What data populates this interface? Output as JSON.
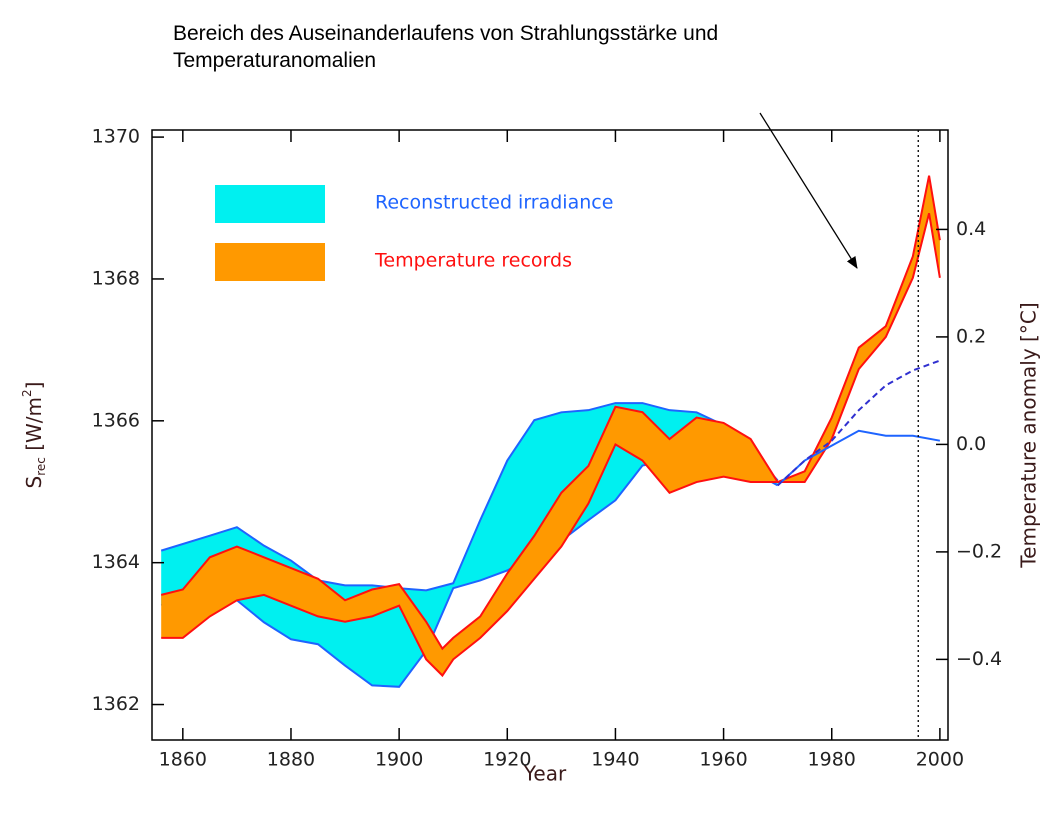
{
  "chart_data": {
    "type": "band",
    "annotation": [
      "Bereich des Auseinanderlaufens von Strahlungsstärke und",
      "Temperaturanomalien"
    ],
    "xlabel": "Year",
    "ylabel": [
      "S",
      "rec",
      " [W/m",
      "2",
      "]"
    ],
    "y2label": "Temperature anomaly [°C]",
    "xlim": [
      1854.3,
      2001.5
    ],
    "xticks": [
      1860,
      1880,
      1900,
      1920,
      1940,
      1960,
      1980,
      2000
    ],
    "ylim": [
      1361.5,
      1370.1
    ],
    "yticks": [
      1362,
      1364,
      1366,
      1368,
      1370
    ],
    "y2lim": [
      -0.55,
      0.585
    ],
    "y2ticks": [
      {
        "value": -0.4,
        "label": "−0.4"
      },
      {
        "value": -0.2,
        "label": "−0.2"
      },
      {
        "value": 0,
        "label": "0.0"
      },
      0.2,
      0.4
    ],
    "legend": "upper left",
    "reference_lines": [
      1996
    ],
    "series": [
      {
        "type": "band",
        "name": "Reconstructed irradiance",
        "color": "#00f0f0",
        "edge_color": "#1e64ff",
        "axis": "y",
        "x": [
          1856,
          1865,
          1870,
          1875,
          1880,
          1885,
          1890,
          1895,
          1900,
          1905,
          1910,
          1915,
          1920,
          1925,
          1930,
          1935,
          1940,
          1945,
          1950,
          1955,
          1960,
          1965,
          1970
        ],
        "upper": [
          1364.17,
          1364.38,
          1364.5,
          1364.24,
          1364.03,
          1363.75,
          1363.68,
          1363.68,
          1363.64,
          1363.61,
          1363.71,
          1364.6,
          1365.44,
          1366.01,
          1366.12,
          1366.15,
          1366.25,
          1366.25,
          1366.15,
          1366.12,
          1365.94,
          1365.58,
          1365.16
        ],
        "lower": [
          1363.4,
          1363.61,
          1363.47,
          1363.16,
          1362.92,
          1362.85,
          1362.55,
          1362.27,
          1362.25,
          1362.76,
          1363.64,
          1363.75,
          1363.89,
          1364.1,
          1364.31,
          1364.6,
          1364.88,
          1365.37,
          1365.44,
          1365.51,
          1365.44,
          1365.3,
          1365.09
        ]
      },
      {
        "type": "band",
        "name": "Temperature records",
        "color": "#ff9900",
        "edge_color": "#ff1010",
        "axis": "y2",
        "x": [
          1856,
          1860,
          1865,
          1870,
          1875,
          1880,
          1885,
          1890,
          1895,
          1900,
          1905,
          1908,
          1910,
          1915,
          1920,
          1925,
          1930,
          1935,
          1940,
          1945,
          1950,
          1955,
          1960,
          1965,
          1970,
          1975,
          1980,
          1985,
          1990,
          1995,
          1998,
          2000
        ],
        "upper": [
          -0.28,
          -0.27,
          -0.21,
          -0.19,
          -0.21,
          -0.23,
          -0.25,
          -0.29,
          -0.27,
          -0.26,
          -0.33,
          -0.38,
          -0.36,
          -0.32,
          -0.24,
          -0.17,
          -0.09,
          -0.04,
          0.07,
          0.06,
          0.01,
          0.05,
          0.04,
          0.01,
          -0.07,
          -0.05,
          0.05,
          0.18,
          0.22,
          0.35,
          0.5,
          0.38
        ],
        "lower": [
          -0.36,
          -0.36,
          -0.32,
          -0.29,
          -0.28,
          -0.3,
          -0.32,
          -0.33,
          -0.32,
          -0.3,
          -0.4,
          -0.43,
          -0.4,
          -0.36,
          -0.31,
          -0.25,
          -0.19,
          -0.11,
          0,
          -0.03,
          -0.09,
          -0.07,
          -0.06,
          -0.07,
          -0.07,
          -0.07,
          0.01,
          0.14,
          0.2,
          0.31,
          0.43,
          0.31
        ]
      },
      {
        "type": "line",
        "color": "#1e64ff",
        "style": "solid",
        "axis": "y",
        "x": [
          1970,
          1975,
          1980,
          1985,
          1990,
          1995,
          2000
        ],
        "values": [
          1365.09,
          1365.44,
          1365.65,
          1365.86,
          1365.79,
          1365.79,
          1365.72
        ]
      },
      {
        "type": "line",
        "color": "#3030d0",
        "style": "dashed",
        "axis": "y",
        "x": [
          1970,
          1975,
          1980,
          1985,
          1990,
          1995,
          2000
        ],
        "values": [
          1365.09,
          1365.44,
          1365.72,
          1366.15,
          1366.5,
          1366.71,
          1366.85
        ]
      }
    ]
  }
}
